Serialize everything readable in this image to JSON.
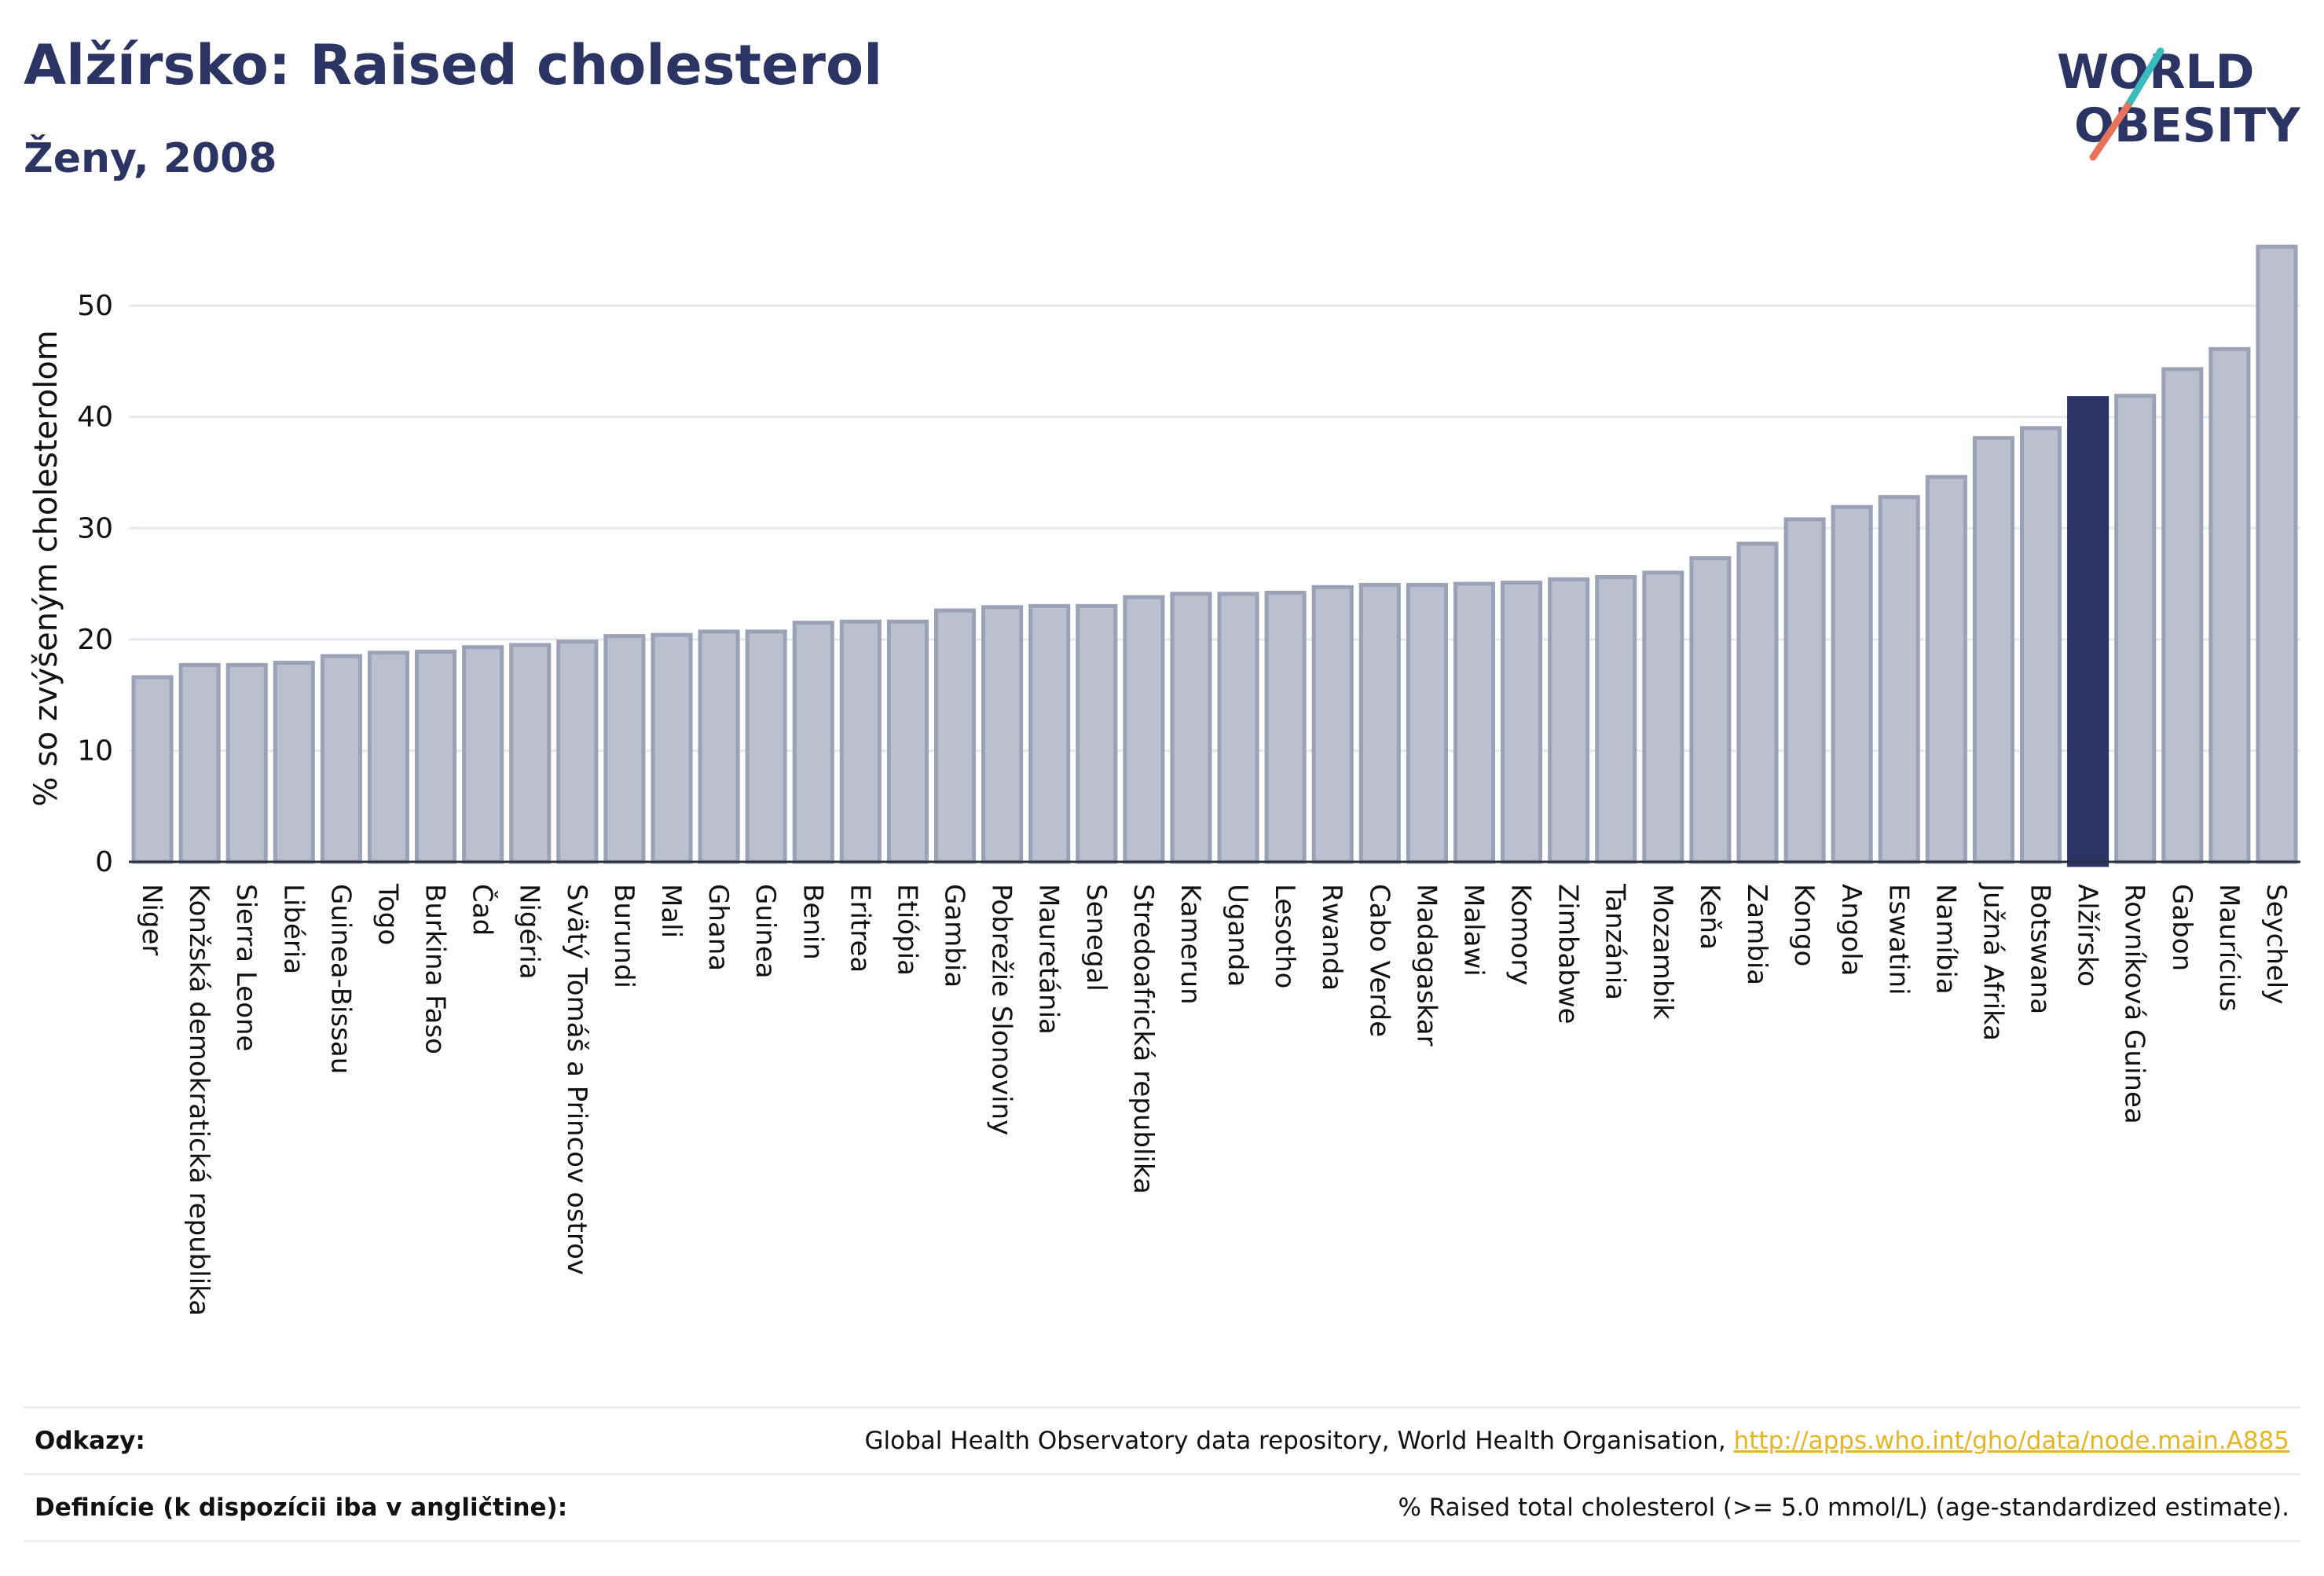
{
  "header": {
    "title": "Alžírsko: Raised cholesterol",
    "subtitle": "Ženy, 2008"
  },
  "logo": {
    "line1": "WORLD",
    "line2": "OBESITY",
    "slash_colors": [
      "#3bbcbc",
      "#e8735a"
    ]
  },
  "colors": {
    "bar": "#bcc0ce",
    "bar_stroke": "#9ba1b6",
    "highlight": "#2a3563",
    "grid": "#e6e8ee",
    "text_primary": "#2a3563",
    "link": "#e5b624"
  },
  "chart_data": {
    "type": "bar",
    "title": "Alžírsko: Raised cholesterol",
    "subtitle": "Ženy, 2008",
    "xlabel": "",
    "ylabel": "% so zvýšeným cholesterolom",
    "ylim": [
      0,
      57
    ],
    "yticks": [
      0,
      10,
      20,
      30,
      40,
      50
    ],
    "grid": true,
    "highlight": "Alžírsko",
    "categories": [
      "Niger",
      "Konžská demokratická republika",
      "Sierra Leone",
      "Libéria",
      "Guinea-Bissau",
      "Togo",
      "Burkina Faso",
      "Čad",
      "Nigéria",
      "Svätý Tomáš a Princov ostrov",
      "Burundi",
      "Mali",
      "Ghana",
      "Guinea",
      "Benin",
      "Eritrea",
      "Etiópia",
      "Gambia",
      "Pobrežie Slonoviny",
      "Mauretánia",
      "Senegal",
      "Stredoafrická republika",
      "Kamerun",
      "Uganda",
      "Lesotho",
      "Rwanda",
      "Cabo Verde",
      "Madagaskar",
      "Malawi",
      "Komory",
      "Zimbabwe",
      "Tanzánia",
      "Mozambik",
      "Keňa",
      "Zambia",
      "Kongo",
      "Angola",
      "Eswatini",
      "Namíbia",
      "Južná Afrika",
      "Botswana",
      "Alžírsko",
      "Rovníková Guinea",
      "Gabon",
      "Maurícius",
      "Seychely"
    ],
    "values": [
      16.6,
      17.7,
      17.7,
      17.9,
      18.5,
      18.8,
      18.9,
      19.3,
      19.5,
      19.8,
      20.3,
      20.4,
      20.7,
      20.7,
      21.5,
      21.6,
      21.6,
      22.6,
      22.9,
      23.0,
      23.0,
      23.8,
      24.1,
      24.1,
      24.2,
      24.7,
      24.9,
      24.9,
      25.0,
      25.1,
      25.4,
      25.6,
      26.0,
      27.3,
      28.6,
      30.8,
      31.9,
      32.8,
      34.6,
      38.1,
      39.0,
      41.7,
      41.9,
      44.3,
      46.1,
      55.3
    ]
  },
  "footer": {
    "sources_label": "Odkazy:",
    "sources_text": "Global Health Observatory data repository, World Health Organisation, ",
    "sources_link": "http://apps.who.int/gho/data/node.main.A885",
    "definitions_label": "Definície (k dispozícii iba v angličtine):",
    "definitions_text": "% Raised total cholesterol (>= 5.0 mmol/L) (age-standardized estimate)."
  }
}
